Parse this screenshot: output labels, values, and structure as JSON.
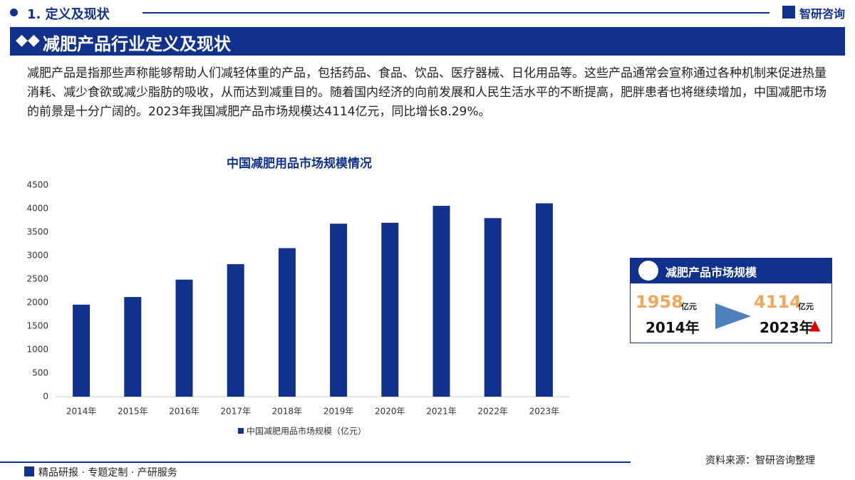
{
  "header": {
    "section": "1. 定义及现状",
    "logo": "智研咨询",
    "banner": "减肥产品行业定义及现状"
  },
  "body": "减肥产品是指那些声称能够帮助人们减轻体重的产品，包括药品、食品、饮品、医疗器械、日化用品等。这些产品通常会宣称通过各种机制来促进热量消耗、减少食欲或减少脂肪的吸收，从而达到减重目的。随着国内经济的向前发展和人民生活水平的不断提高，肥胖患者也将继续增加，中国减肥市场的前景是十分广阔的。2023年我国减肥产品市场规模达4114亿元，同比增长8.29%。",
  "chart_data": {
    "type": "bar",
    "title": "中国减肥用品市场规模情况",
    "categories": [
      "2014年",
      "2015年",
      "2016年",
      "2017年",
      "2018年",
      "2019年",
      "2020年",
      "2021年",
      "2022年",
      "2023年"
    ],
    "series": [
      {
        "name": "中国减肥用品市场规模（亿元）",
        "color": "#10318c",
        "values": [
          1958,
          2120,
          2490,
          2820,
          3160,
          3680,
          3700,
          4060,
          3799,
          4114
        ]
      }
    ],
    "ylim": [
      0,
      4500
    ],
    "yticks": [
      0,
      500,
      1000,
      1500,
      2000,
      2500,
      3000,
      3500,
      4000,
      4500
    ],
    "grid": false,
    "legend": "bottom"
  },
  "info_box": {
    "title": "减肥产品市场规模",
    "start_value": "1958",
    "start_unit": "亿元",
    "start_year": "2014年",
    "end_value": "4114",
    "end_unit": "亿元",
    "end_year": "2023年"
  },
  "footer": {
    "source": "资料来源：智研咨询整理",
    "tagline": "精品研报 · 专题定制 · 产研服务"
  }
}
